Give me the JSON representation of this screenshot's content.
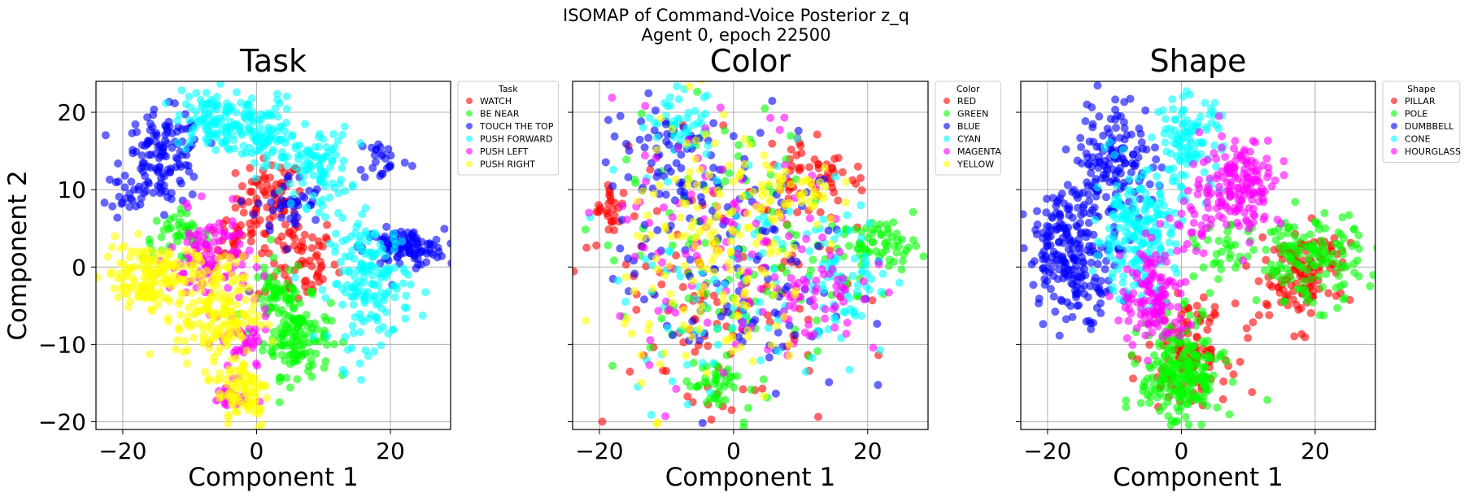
{
  "figure": {
    "suptitle_line1": "ISOMAP of Command-Voice Posterior z_q",
    "suptitle_line2": "Agent 0, epoch 22500"
  },
  "chart_data": [
    {
      "type": "scatter",
      "title": "Task",
      "xlabel": "Component 1",
      "ylabel": "Component 2",
      "xlim": [
        -24,
        29
      ],
      "ylim": [
        -21,
        24
      ],
      "xticks": [
        -20,
        0,
        20
      ],
      "yticks": [
        -20,
        -10,
        0,
        10,
        20
      ],
      "grid": true,
      "legend": {
        "title": "Task",
        "placement": "outside-upper-right"
      },
      "series": [
        {
          "name": "WATCH",
          "color": "#ff0000",
          "clusters": [
            {
              "cx": 2,
              "cy": 9,
              "sx": 2.5,
              "sy": 2.5,
              "n": 70
            },
            {
              "cx": 6,
              "cy": 1,
              "sx": 3,
              "sy": 3,
              "n": 70
            },
            {
              "cx": -3,
              "cy": 4,
              "sx": 2,
              "sy": 2,
              "n": 30
            }
          ]
        },
        {
          "name": "BE NEAR",
          "color": "#00ff00",
          "clusters": [
            {
              "cx": 6,
              "cy": -9,
              "sx": 2.5,
              "sy": 2.5,
              "n": 130
            },
            {
              "cx": -12,
              "cy": 4,
              "sx": 2.5,
              "sy": 1.5,
              "n": 40
            },
            {
              "cx": 3,
              "cy": -3,
              "sx": 2,
              "sy": 2,
              "n": 50
            }
          ]
        },
        {
          "name": "TOUCH THE TOP",
          "color": "#0000ff",
          "clusters": [
            {
              "cx": -14,
              "cy": 14,
              "sx": 3,
              "sy": 3,
              "n": 130
            },
            {
              "cx": 22,
              "cy": 2.5,
              "sx": 3,
              "sy": 1.2,
              "n": 110
            },
            {
              "cx": 19,
              "cy": 14,
              "sx": 2,
              "sy": 1.5,
              "n": 25
            },
            {
              "cx": 5,
              "cy": 8,
              "sx": 2.5,
              "sy": 2,
              "n": 40
            },
            {
              "cx": -19,
              "cy": 9.5,
              "sx": 1.5,
              "sy": 1,
              "n": 15
            }
          ]
        },
        {
          "name": "PUSH FORWARD",
          "color": "#00ffff",
          "clusters": [
            {
              "cx": -7,
              "cy": 19,
              "sx": 2.5,
              "sy": 2,
              "n": 100
            },
            {
              "cx": 1,
              "cy": 17,
              "sx": 2.5,
              "sy": 2.5,
              "n": 100
            },
            {
              "cx": 9,
              "cy": 13,
              "sx": 2.5,
              "sy": 2.5,
              "n": 90
            },
            {
              "cx": 17,
              "cy": -2,
              "sx": 3,
              "sy": 4,
              "n": 170
            }
          ]
        },
        {
          "name": "PUSH LEFT",
          "color": "#ff00ff",
          "clusters": [
            {
              "cx": -7,
              "cy": 1,
              "sx": 3,
              "sy": 3,
              "n": 110
            },
            {
              "cx": -2,
              "cy": -10,
              "sx": 2,
              "sy": 2,
              "n": 40
            },
            {
              "cx": -4,
              "cy": -17,
              "sx": 1.5,
              "sy": 1,
              "n": 25
            }
          ]
        },
        {
          "name": "PUSH RIGHT",
          "color": "#ffff00",
          "clusters": [
            {
              "cx": -16,
              "cy": -1,
              "sx": 3.5,
              "sy": 2,
              "n": 160
            },
            {
              "cx": -6,
              "cy": -6,
              "sx": 3,
              "sy": 3.5,
              "n": 170
            },
            {
              "cx": -2,
              "cy": -16,
              "sx": 2,
              "sy": 2.5,
              "n": 90
            }
          ]
        }
      ]
    },
    {
      "type": "scatter",
      "title": "Color",
      "xlabel": "Component 1",
      "ylabel": "",
      "xlim": [
        -24,
        29
      ],
      "ylim": [
        -21,
        24
      ],
      "xticks": [
        -20,
        0,
        20
      ],
      "yticks": [
        -20,
        -10,
        0,
        10,
        20
      ],
      "grid": true,
      "legend": {
        "title": "Color",
        "placement": "outside-upper-right"
      },
      "series": [
        {
          "name": "RED",
          "color": "#ff0000",
          "clusters": [
            {
              "cx": -18,
              "cy": 7,
              "sx": 1.5,
              "sy": 2,
              "n": 30
            },
            {
              "cx": 12,
              "cy": 12,
              "sx": 4,
              "sy": 3,
              "n": 60
            },
            {
              "cx": -3,
              "cy": -4,
              "sx": 9,
              "sy": 9,
              "n": 110
            }
          ]
        },
        {
          "name": "GREEN",
          "color": "#00ff00",
          "clusters": [
            {
              "cx": 22,
              "cy": 3,
              "sx": 3,
              "sy": 1.5,
              "n": 60
            },
            {
              "cx": 0,
              "cy": 2,
              "sx": 9,
              "sy": 9,
              "n": 120
            },
            {
              "cx": -3,
              "cy": -15,
              "sx": 2,
              "sy": 2,
              "n": 40
            }
          ]
        },
        {
          "name": "BLUE",
          "color": "#0000ff",
          "clusters": [
            {
              "cx": -10,
              "cy": 14,
              "sx": 4,
              "sy": 4,
              "n": 70
            },
            {
              "cx": 0,
              "cy": 0,
              "sx": 9,
              "sy": 9,
              "n": 120
            }
          ]
        },
        {
          "name": "CYAN",
          "color": "#00ffff",
          "clusters": [
            {
              "cx": -8,
              "cy": 19,
              "sx": 2.5,
              "sy": 2,
              "n": 40
            },
            {
              "cx": 17,
              "cy": -1,
              "sx": 3,
              "sy": 4,
              "n": 60
            },
            {
              "cx": 0,
              "cy": 0,
              "sx": 9,
              "sy": 9,
              "n": 100
            }
          ]
        },
        {
          "name": "MAGENTA",
          "color": "#ff00ff",
          "clusters": [
            {
              "cx": 12,
              "cy": -4,
              "sx": 3,
              "sy": 2.5,
              "n": 40
            },
            {
              "cx": 0,
              "cy": 2,
              "sx": 9,
              "sy": 9,
              "n": 120
            }
          ]
        },
        {
          "name": "YELLOW",
          "color": "#ffff00",
          "clusters": [
            {
              "cx": -2,
              "cy": 1,
              "sx": 7,
              "sy": 9,
              "n": 180
            },
            {
              "cx": 10,
              "cy": 10,
              "sx": 3,
              "sy": 2.5,
              "n": 40
            }
          ]
        }
      ]
    },
    {
      "type": "scatter",
      "title": "Shape",
      "xlabel": "Component 1",
      "ylabel": "",
      "xlim": [
        -24,
        29
      ],
      "ylim": [
        -21,
        24
      ],
      "xticks": [
        -20,
        0,
        20
      ],
      "yticks": [
        -20,
        -10,
        0,
        10,
        20
      ],
      "grid": true,
      "legend": {
        "title": "Shape",
        "placement": "outside-upper-right"
      },
      "series": [
        {
          "name": "PILLAR",
          "color": "#ff0000",
          "clusters": [
            {
              "cx": 1,
              "cy": -11,
              "sx": 3,
              "sy": 3,
              "n": 120
            },
            {
              "cx": 17,
              "cy": -2,
              "sx": 3,
              "sy": 3,
              "n": 90
            },
            {
              "cx": 20,
              "cy": 1,
              "sx": 3,
              "sy": 1.5,
              "n": 40
            }
          ]
        },
        {
          "name": "POLE",
          "color": "#00ff00",
          "clusters": [
            {
              "cx": 0,
              "cy": -14,
              "sx": 3,
              "sy": 3.5,
              "n": 220
            },
            {
              "cx": 19,
              "cy": 1,
              "sx": 4,
              "sy": 3,
              "n": 140
            },
            {
              "cx": 6,
              "cy": 1,
              "sx": 2,
              "sy": 2,
              "n": 30
            }
          ]
        },
        {
          "name": "DUMBBELL",
          "color": "#0000ff",
          "clusters": [
            {
              "cx": -16,
              "cy": 2,
              "sx": 3.5,
              "sy": 4,
              "n": 230
            },
            {
              "cx": -10,
              "cy": 14,
              "sx": 3,
              "sy": 4,
              "n": 140
            }
          ]
        },
        {
          "name": "CONE",
          "color": "#00ffff",
          "clusters": [
            {
              "cx": -7,
              "cy": 4,
              "sx": 3,
              "sy": 4,
              "n": 200
            },
            {
              "cx": 1,
              "cy": 16,
              "sx": 2.5,
              "sy": 3,
              "n": 110
            }
          ]
        },
        {
          "name": "HOURGLASS",
          "color": "#ff00ff",
          "clusters": [
            {
              "cx": 9,
              "cy": 11,
              "sx": 3,
              "sy": 3,
              "n": 150
            },
            {
              "cx": -4,
              "cy": -4,
              "sx": 2.5,
              "sy": 3.5,
              "n": 130
            },
            {
              "cx": 3,
              "cy": 6,
              "sx": 2,
              "sy": 2,
              "n": 30
            }
          ]
        }
      ]
    }
  ]
}
